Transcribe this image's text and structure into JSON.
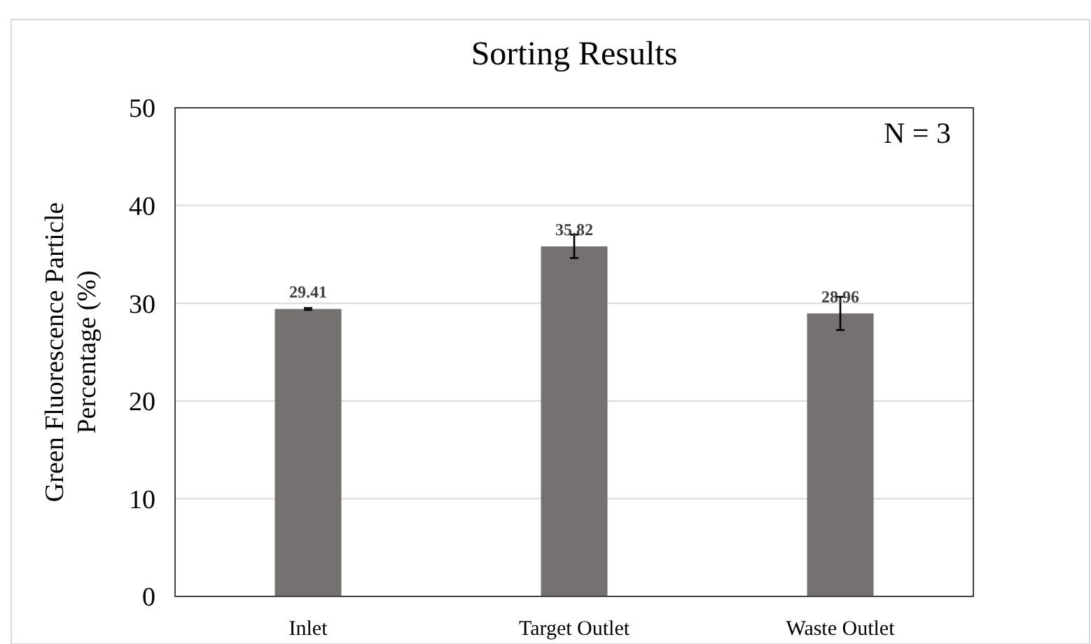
{
  "chart_data": {
    "type": "bar",
    "title": "Sorting Results",
    "ylabel": "Green Fluorescence Particle Percentage (%)",
    "categories": [
      "Inlet",
      "Target Outlet",
      "Waste Outlet"
    ],
    "values": [
      29.41,
      35.82,
      28.96
    ],
    "errors": [
      0.1,
      1.2,
      1.7
    ],
    "color": "#757171",
    "data_labels": true,
    "ylim": [
      0,
      50
    ],
    "yticks": [
      0,
      10,
      20,
      30,
      40,
      50
    ],
    "grid": "y",
    "annotations": [
      "N = 3"
    ]
  }
}
